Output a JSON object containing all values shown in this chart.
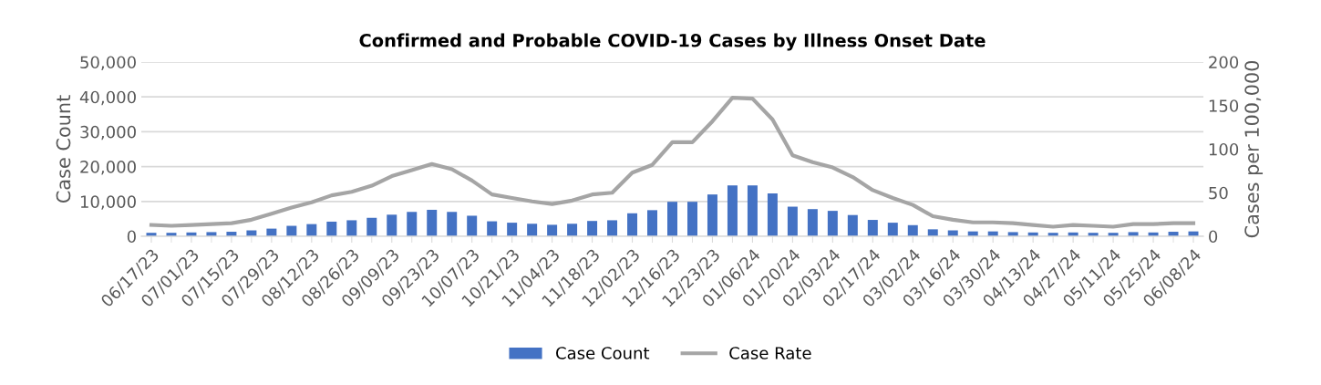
{
  "chart_data": {
    "type": "bar",
    "title": "Confirmed and Probable COVID-19 Cases by Illness Onset Date",
    "ylabel": "Case Count",
    "y2label": "Cases per 100,000",
    "categories": [
      "06/17/23",
      null,
      "07/01/23",
      null,
      "07/15/23",
      null,
      "07/29/23",
      null,
      "08/12/23",
      null,
      "08/26/23",
      null,
      "09/09/23",
      null,
      "09/23/23",
      null,
      "10/07/23",
      null,
      "10/21/23",
      null,
      "11/04/23",
      null,
      "11/18/23",
      null,
      "12/02/23",
      null,
      "12/16/23",
      null,
      "12/23/23",
      null,
      "01/06/24",
      null,
      "01/20/24",
      null,
      "02/03/24",
      null,
      "02/17/24",
      null,
      "03/02/24",
      null,
      "03/16/24",
      null,
      "03/30/24",
      null,
      "04/13/24",
      null,
      "04/27/24",
      null,
      "05/11/24",
      null,
      "05/25/24",
      null,
      "06/08/24"
    ],
    "series": [
      {
        "name": "Case Count",
        "color": "#4472c4",
        "values": [
          1000,
          1000,
          1100,
          1200,
          1300,
          1700,
          2200,
          3000,
          3500,
          4200,
          4600,
          5300,
          6200,
          7000,
          7600,
          7000,
          5900,
          4300,
          3900,
          3600,
          3300,
          3600,
          4400,
          4600,
          6600,
          7500,
          9900,
          9900,
          12000,
          14600,
          14600,
          12300,
          8500,
          7800,
          7300,
          6100,
          4700,
          3900,
          3200,
          2000,
          1700,
          1400,
          1400,
          1200,
          1100,
          1000,
          1100,
          1000,
          1000,
          1200,
          1100,
          1300,
          1400
        ]
      },
      {
        "name": "Case Rate",
        "type": "line",
        "axis": "y2",
        "color": "#a5a5a5",
        "values": [
          13,
          12,
          13,
          14,
          15,
          19,
          26,
          33,
          39,
          47,
          51,
          58,
          69,
          76,
          83,
          77,
          64,
          48,
          44,
          40,
          37,
          41,
          48,
          50,
          73,
          82,
          108,
          108,
          132,
          159,
          158,
          134,
          93,
          85,
          79,
          68,
          53,
          44,
          36,
          23,
          19,
          16,
          16,
          15,
          13,
          11,
          13,
          12,
          11,
          14,
          14,
          15,
          15
        ]
      }
    ],
    "ylim": [
      0,
      50000
    ],
    "yticks": [
      {
        "value": 0,
        "label": "0"
      },
      {
        "value": 10000,
        "label": "10,000"
      },
      {
        "value": 20000,
        "label": "20,000"
      },
      {
        "value": 30000,
        "label": "30,000"
      },
      {
        "value": 40000,
        "label": "40,000"
      },
      {
        "value": 50000,
        "label": "50,000"
      }
    ],
    "y2lim": [
      0,
      200
    ],
    "y2ticks": [
      0,
      50,
      100,
      150,
      200
    ],
    "grid": "y",
    "legend": "bottom",
    "marker": "none",
    "line_style": "solid"
  }
}
